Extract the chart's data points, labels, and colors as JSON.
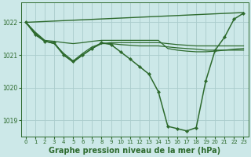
{
  "background_color": "#cce8e8",
  "grid_color": "#aacccc",
  "line_color": "#2d6a2d",
  "title": "Graphe pression niveau de la mer (hPa)",
  "title_fontsize": 7,
  "xlim": [
    -0.5,
    23.5
  ],
  "ylim": [
    1018.5,
    1022.6
  ],
  "yticks": [
    1019,
    1020,
    1021,
    1022
  ],
  "xticks": [
    0,
    1,
    2,
    3,
    4,
    5,
    6,
    7,
    8,
    9,
    10,
    11,
    12,
    13,
    14,
    15,
    16,
    17,
    18,
    19,
    20,
    21,
    22,
    23
  ],
  "series": [
    {
      "x": [
        0,
        23
      ],
      "y": [
        1022.0,
        1022.3
      ],
      "marker": false,
      "linewidth": 1.0
    },
    {
      "x": [
        0,
        1,
        2,
        3,
        4,
        5,
        6,
        7,
        8,
        9,
        10,
        11,
        12,
        13,
        14,
        15,
        16,
        17,
        18,
        19,
        20,
        21,
        22,
        23
      ],
      "y": [
        1022.0,
        1021.7,
        1021.45,
        1021.42,
        1021.38,
        1021.35,
        1021.38,
        1021.42,
        1021.45,
        1021.45,
        1021.45,
        1021.45,
        1021.45,
        1021.45,
        1021.45,
        1021.2,
        1021.15,
        1021.12,
        1021.1,
        1021.1,
        1021.12,
        1021.15,
        1021.18,
        1021.2
      ],
      "marker": false,
      "linewidth": 0.9
    },
    {
      "x": [
        0,
        1,
        2,
        3,
        4,
        5,
        6,
        7,
        8,
        9,
        10,
        11,
        12,
        13,
        14,
        15,
        16,
        17,
        18,
        19,
        20,
        21,
        22,
        23
      ],
      "y": [
        1022.0,
        1021.68,
        1021.43,
        1021.35,
        1021.05,
        1020.82,
        1021.05,
        1021.25,
        1021.35,
        1021.38,
        1021.38,
        1021.38,
        1021.38,
        1021.38,
        1021.38,
        1021.35,
        1021.32,
        1021.3,
        1021.28,
        1021.28,
        1021.28,
        1021.28,
        1021.28,
        1021.28
      ],
      "marker": false,
      "linewidth": 0.9
    },
    {
      "x": [
        0,
        1,
        2,
        3,
        4,
        5,
        6,
        7,
        8,
        9,
        10,
        11,
        12,
        13,
        14,
        15,
        16,
        17,
        18,
        19,
        20,
        21,
        22,
        23
      ],
      "y": [
        1022.0,
        1021.65,
        1021.42,
        1021.35,
        1021.0,
        1020.78,
        1021.0,
        1021.2,
        1021.35,
        1021.35,
        1021.32,
        1021.3,
        1021.28,
        1021.28,
        1021.28,
        1021.25,
        1021.22,
        1021.2,
        1021.18,
        1021.15,
        1021.15,
        1021.15,
        1021.15,
        1021.15
      ],
      "marker": false,
      "linewidth": 0.9
    },
    {
      "x": [
        0,
        1,
        2,
        3,
        4,
        5,
        6,
        7,
        8,
        9,
        10,
        11,
        12,
        13,
        14,
        15,
        16,
        17,
        18,
        19,
        20,
        21,
        22,
        23
      ],
      "y": [
        1022.0,
        1021.62,
        1021.42,
        1021.38,
        1021.0,
        1020.8,
        1021.0,
        1021.2,
        1021.38,
        1021.32,
        1021.1,
        1020.88,
        1020.65,
        1020.42,
        1019.88,
        1018.82,
        1018.75,
        1018.68,
        1018.78,
        1020.2,
        1021.15,
        1021.55,
        1022.1,
        1022.28
      ],
      "marker": true,
      "linewidth": 1.1
    }
  ]
}
